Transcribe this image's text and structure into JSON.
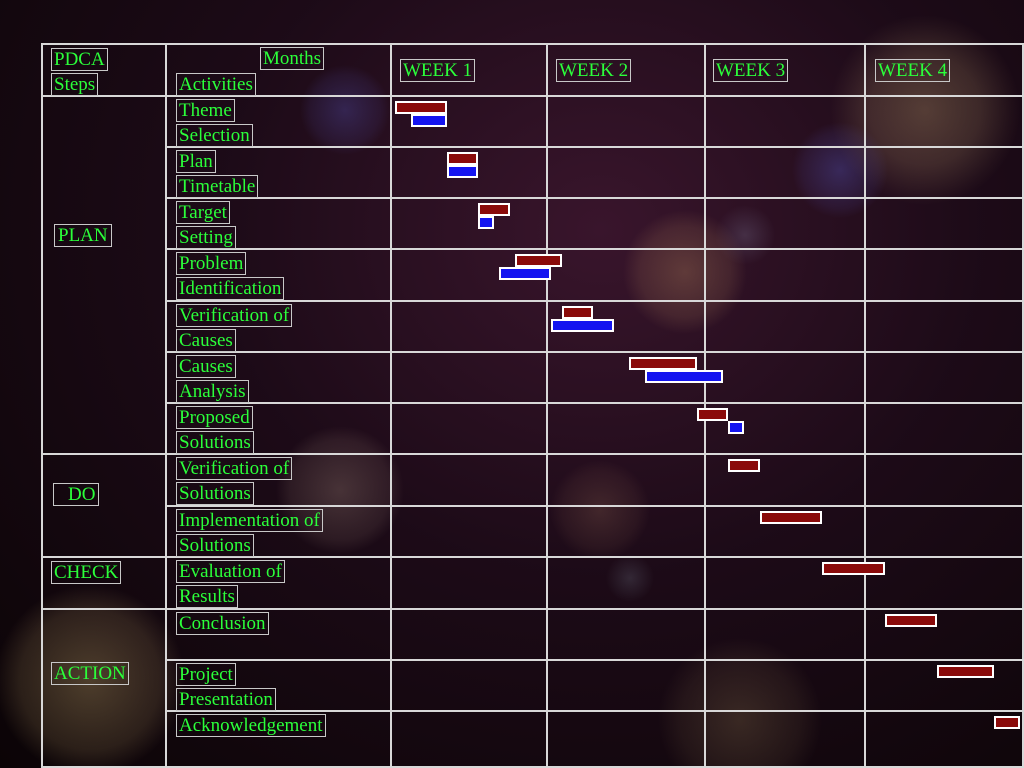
{
  "header": {
    "pdca_line1": "PDCA",
    "pdca_line2": "Steps",
    "months": "Months",
    "activities": "Activities",
    "weeks": [
      "WEEK 1",
      "WEEK 2",
      "WEEK 3",
      "WEEK 4"
    ]
  },
  "steps": {
    "plan": "PLAN",
    "do": "DO",
    "check": "CHECK",
    "action": "ACTION"
  },
  "activities": [
    {
      "line1": "Theme",
      "line2": "Selection"
    },
    {
      "line1": "Plan",
      "line2": "Timetable"
    },
    {
      "line1": "Target",
      "line2": "Setting"
    },
    {
      "line1": "Problem",
      "line2": "Identification"
    },
    {
      "line1": "Verification of",
      "line2": "Causes"
    },
    {
      "line1": "Causes",
      "line2": "Analysis"
    },
    {
      "line1": "Proposed",
      "line2": "Solutions"
    },
    {
      "line1": "Verification of",
      "line2": "Solutions"
    },
    {
      "line1": "Implementation of",
      "line2": "Solutions"
    },
    {
      "line1": "Evaluation of",
      "line2": "Results"
    },
    {
      "line1": "Conclusion",
      "line2": ""
    },
    {
      "line1": "Project",
      "line2": "Presentation"
    },
    {
      "line1": "Acknowledgement",
      "line2": ""
    }
  ],
  "schedule_colors": {
    "planned": "#8a0a0a",
    "actual": "#1414f0"
  },
  "schedule": [
    {
      "planned": [
        1.0,
        1.5
      ],
      "actual": [
        1.15,
        1.5
      ]
    },
    {
      "planned": [
        1.5,
        1.8
      ],
      "actual": [
        1.5,
        1.8
      ]
    },
    {
      "planned": [
        1.8,
        2.1
      ],
      "actual": [
        1.8,
        1.95
      ]
    },
    {
      "planned": [
        2.15,
        2.6
      ],
      "actual": [
        2.0,
        2.5
      ]
    },
    {
      "planned": [
        2.6,
        2.9
      ],
      "actual": [
        2.5,
        3.1
      ]
    },
    {
      "planned": [
        3.25,
        3.9
      ],
      "actual": [
        3.4,
        4.15
      ]
    },
    {
      "planned": [
        3.9,
        4.2
      ],
      "actual": [
        4.2,
        4.35
      ]
    },
    {
      "planned": [
        4.2,
        4.5
      ],
      "actual": null
    },
    {
      "planned": [
        4.5,
        5.1
      ],
      "actual": null
    },
    {
      "planned": [
        5.1,
        5.7
      ],
      "actual": null
    },
    {
      "planned": [
        5.7,
        6.2
      ],
      "actual": null
    },
    {
      "planned": [
        6.2,
        6.75
      ],
      "actual": null
    },
    {
      "planned": [
        6.75,
        7.0
      ],
      "actual": null
    }
  ]
}
